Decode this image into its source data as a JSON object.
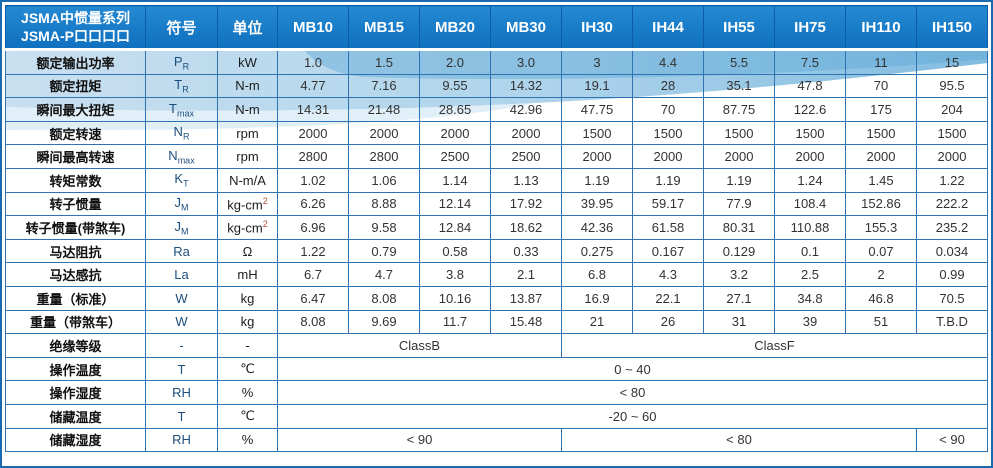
{
  "table": {
    "title_line1": "JSMA中惯量系列",
    "title_line2": "JSMA-P口口口口",
    "symbol_col": "符号",
    "unit_col": "单位",
    "models": [
      "MB10",
      "MB15",
      "MB20",
      "MB30",
      "IH30",
      "IH44",
      "IH55",
      "IH75",
      "IH110",
      "IH150"
    ],
    "rows": [
      {
        "label": "额定输出功率",
        "symbol": "P",
        "symbol_sub": "R",
        "unit": "kW",
        "values": [
          "1.0",
          "1.5",
          "2.0",
          "3.0",
          "3",
          "4.4",
          "5.5",
          "7.5",
          "11",
          "15"
        ]
      },
      {
        "label": "额定扭矩",
        "symbol": "T",
        "symbol_sub": "R",
        "unit": "N-m",
        "values": [
          "4.77",
          "7.16",
          "9.55",
          "14.32",
          "19.1",
          "28",
          "35.1",
          "47.8",
          "70",
          "95.5"
        ]
      },
      {
        "label": "瞬间最大扭矩",
        "symbol": "T",
        "symbol_sub": "max",
        "unit": "N-m",
        "values": [
          "14.31",
          "21.48",
          "28.65",
          "42.96",
          "47.75",
          "70",
          "87.75",
          "122.6",
          "175",
          "204"
        ]
      },
      {
        "label": "额定转速",
        "symbol": "N",
        "symbol_sub": "R",
        "unit": "rpm",
        "values": [
          "2000",
          "2000",
          "2000",
          "2000",
          "1500",
          "1500",
          "1500",
          "1500",
          "1500",
          "1500"
        ]
      },
      {
        "label": "瞬间最高转速",
        "symbol": "N",
        "symbol_sub": "max",
        "unit": "rpm",
        "values": [
          "2800",
          "2800",
          "2500",
          "2500",
          "2000",
          "2000",
          "2000",
          "2000",
          "2000",
          "2000"
        ]
      },
      {
        "label": "转矩常数",
        "symbol": "K",
        "symbol_sub": "T",
        "unit": "N-m/A",
        "values": [
          "1.02",
          "1.06",
          "1.14",
          "1.13",
          "1.19",
          "1.19",
          "1.19",
          "1.24",
          "1.45",
          "1.22"
        ]
      },
      {
        "label": "转子惯量",
        "symbol": "J",
        "symbol_sub": "M",
        "unit": "kg-cm",
        "unit_sup": "2",
        "values": [
          "6.26",
          "8.88",
          "12.14",
          "17.92",
          "39.95",
          "59.17",
          "77.9",
          "108.4",
          "152.86",
          "222.2"
        ]
      },
      {
        "label": "转子惯量(带煞车)",
        "symbol": "J",
        "symbol_sub": "M",
        "unit": "kg-cm",
        "unit_sup": "2",
        "values": [
          "6.96",
          "9.58",
          "12.84",
          "18.62",
          "42.36",
          "61.58",
          "80.31",
          "110.88",
          "155.3",
          "235.2"
        ]
      },
      {
        "label": "马达阻抗",
        "symbol": "Ra",
        "symbol_sub": "",
        "unit": "Ω",
        "values": [
          "1.22",
          "0.79",
          "0.58",
          "0.33",
          "0.275",
          "0.167",
          "0.129",
          "0.1",
          "0.07",
          "0.034"
        ]
      },
      {
        "label": "马达感抗",
        "symbol": "La",
        "symbol_sub": "",
        "unit": "mH",
        "values": [
          "6.7",
          "4.7",
          "3.8",
          "2.1",
          "6.8",
          "4.3",
          "3.2",
          "2.5",
          "2",
          "0.99"
        ]
      },
      {
        "label": "重量（标准）",
        "symbol": "W",
        "symbol_sub": "",
        "unit": "kg",
        "values": [
          "6.47",
          "8.08",
          "10.16",
          "13.87",
          "16.9",
          "22.1",
          "27.1",
          "34.8",
          "46.8",
          "70.5"
        ]
      },
      {
        "label": "重量（带煞车）",
        "symbol": "W",
        "symbol_sub": "",
        "unit": "kg",
        "values": [
          "8.08",
          "9.69",
          "11.7",
          "15.48",
          "21",
          "26",
          "31",
          "39",
          "51",
          "T.B.D"
        ]
      },
      {
        "label": "绝缘等级",
        "symbol": "-",
        "symbol_sub": "",
        "unit": "-",
        "spans": [
          {
            "text": "ClassB",
            "cols": 4
          },
          {
            "text": "ClassF",
            "cols": 6
          }
        ]
      },
      {
        "label": "操作温度",
        "symbol": "T",
        "symbol_sub": "",
        "unit": "℃",
        "spans": [
          {
            "text": "0 ~ 40",
            "cols": 10
          }
        ]
      },
      {
        "label": "操作湿度",
        "symbol": "RH",
        "symbol_sub": "",
        "unit": "%",
        "spans": [
          {
            "text": "< 80",
            "cols": 10
          }
        ]
      },
      {
        "label": "储藏温度",
        "symbol": "T",
        "symbol_sub": "",
        "unit": "℃",
        "spans": [
          {
            "text": "-20 ~ 60",
            "cols": 10
          }
        ]
      },
      {
        "label": "储藏湿度",
        "symbol": "RH",
        "symbol_sub": "",
        "unit": "%",
        "spans": [
          {
            "text": "< 90",
            "cols": 4
          },
          {
            "text": "< 80",
            "cols": 5
          },
          {
            "text": "< 90",
            "cols": 1
          }
        ]
      }
    ]
  },
  "colors": {
    "header_bg": "#1278c5",
    "header_divider": "#0d5ca6",
    "grid_line": "#2e74b5",
    "outer_border": "#1a6ab2",
    "wave_light": "#cfe5f4",
    "wave_mid": "#9fcde9",
    "wave_deep": "#5aa7d6",
    "value_text": "#333333",
    "unit_sup_accent": "#b14a2f"
  }
}
